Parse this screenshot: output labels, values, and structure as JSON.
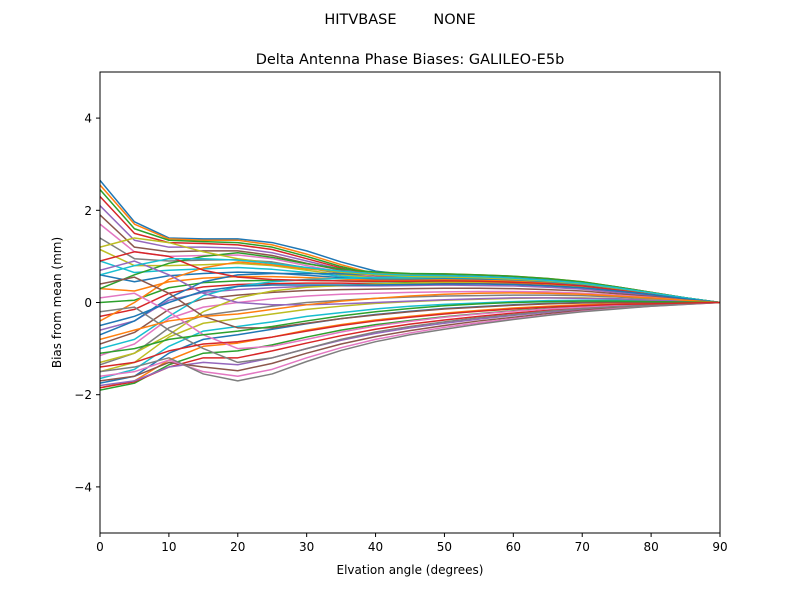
{
  "figure": {
    "suptitle": "HITVBASE        NONE"
  },
  "chart_data": {
    "type": "line",
    "title": "Delta Antenna Phase Biases: GALILEO-E5b",
    "xlabel": "Elvation angle (degrees)",
    "ylabel": "Bias from mean (mm)",
    "xlim": [
      0,
      90
    ],
    "ylim": [
      -5,
      5
    ],
    "xticks": [
      0,
      10,
      20,
      30,
      40,
      50,
      60,
      70,
      80,
      90
    ],
    "yticks": [
      -4,
      -2,
      0,
      2,
      4
    ],
    "ytick_labels": [
      "−4",
      "−2",
      "0",
      "2",
      "4"
    ],
    "grid": false,
    "legend": "none",
    "x": [
      0,
      5,
      10,
      15,
      20,
      25,
      30,
      35,
      40,
      45,
      50,
      55,
      60,
      65,
      70,
      75,
      80,
      85,
      90
    ],
    "colors": [
      "#1f77b4",
      "#ff7f0e",
      "#2ca02c",
      "#d62728",
      "#9467bd",
      "#8c564b",
      "#e377c2",
      "#7f7f7f",
      "#bcbd22",
      "#17becf"
    ],
    "series": [
      {
        "values": [
          2.65,
          1.75,
          1.4,
          1.38,
          1.38,
          1.3,
          1.12,
          0.88,
          0.68,
          0.6,
          0.58,
          0.55,
          0.52,
          0.48,
          0.42,
          0.32,
          0.22,
          0.1,
          0.0
        ]
      },
      {
        "values": [
          2.55,
          1.7,
          1.38,
          1.35,
          1.35,
          1.25,
          1.05,
          0.82,
          0.62,
          0.58,
          0.57,
          0.55,
          0.52,
          0.48,
          0.42,
          0.32,
          0.22,
          0.1,
          0.0
        ]
      },
      {
        "values": [
          2.45,
          1.6,
          1.35,
          1.32,
          1.3,
          1.2,
          1.0,
          0.78,
          0.6,
          0.56,
          0.56,
          0.54,
          0.51,
          0.47,
          0.41,
          0.31,
          0.21,
          0.1,
          0.0
        ]
      },
      {
        "values": [
          2.3,
          1.5,
          1.3,
          1.28,
          1.25,
          1.15,
          0.95,
          0.75,
          0.58,
          0.55,
          0.55,
          0.53,
          0.5,
          0.46,
          0.4,
          0.3,
          0.2,
          0.09,
          0.0
        ]
      },
      {
        "values": [
          2.1,
          1.35,
          1.2,
          1.2,
          1.18,
          1.08,
          0.9,
          0.72,
          0.57,
          0.54,
          0.54,
          0.52,
          0.49,
          0.45,
          0.39,
          0.3,
          0.2,
          0.09,
          0.0
        ]
      },
      {
        "values": [
          1.9,
          1.2,
          1.1,
          1.12,
          1.12,
          1.02,
          0.85,
          0.7,
          0.56,
          0.54,
          0.55,
          0.53,
          0.5,
          0.46,
          0.4,
          0.3,
          0.2,
          0.09,
          0.0
        ]
      },
      {
        "values": [
          1.7,
          1.1,
          1.0,
          1.02,
          1.03,
          0.95,
          0.8,
          0.66,
          0.55,
          0.53,
          0.54,
          0.52,
          0.49,
          0.45,
          0.39,
          0.3,
          0.2,
          0.09,
          0.0
        ]
      },
      {
        "values": [
          1.4,
          0.95,
          0.9,
          0.92,
          0.93,
          0.88,
          0.75,
          0.63,
          0.54,
          0.53,
          0.54,
          0.52,
          0.49,
          0.45,
          0.39,
          0.3,
          0.2,
          0.09,
          0.0
        ]
      },
      {
        "values": [
          1.15,
          0.8,
          0.8,
          0.82,
          0.85,
          0.8,
          0.7,
          0.6,
          0.53,
          0.52,
          0.53,
          0.52,
          0.49,
          0.45,
          0.39,
          0.3,
          0.2,
          0.09,
          0.0
        ]
      },
      {
        "values": [
          0.9,
          0.65,
          0.7,
          0.73,
          0.76,
          0.72,
          0.65,
          0.57,
          0.51,
          0.51,
          0.52,
          0.51,
          0.48,
          0.44,
          0.38,
          0.29,
          0.19,
          0.09,
          0.0
        ]
      },
      {
        "values": [
          0.6,
          0.45,
          0.58,
          0.63,
          0.66,
          0.64,
          0.59,
          0.54,
          0.5,
          0.5,
          0.51,
          0.5,
          0.47,
          0.43,
          0.37,
          0.28,
          0.19,
          0.09,
          0.0
        ]
      },
      {
        "values": [
          0.3,
          0.25,
          0.45,
          0.53,
          0.56,
          0.56,
          0.54,
          0.51,
          0.48,
          0.48,
          0.49,
          0.48,
          0.46,
          0.42,
          0.36,
          0.27,
          0.18,
          0.08,
          0.0
        ]
      },
      {
        "values": [
          0.0,
          0.05,
          0.32,
          0.43,
          0.47,
          0.48,
          0.48,
          0.47,
          0.45,
          0.45,
          0.46,
          0.45,
          0.43,
          0.4,
          0.34,
          0.26,
          0.17,
          0.08,
          0.0
        ]
      },
      {
        "values": [
          -0.3,
          -0.15,
          0.2,
          0.34,
          0.39,
          0.41,
          0.42,
          0.42,
          0.41,
          0.41,
          0.42,
          0.41,
          0.4,
          0.37,
          0.32,
          0.24,
          0.16,
          0.07,
          0.0
        ]
      },
      {
        "values": [
          -0.6,
          -0.4,
          0.05,
          0.22,
          0.28,
          0.32,
          0.35,
          0.36,
          0.36,
          0.37,
          0.38,
          0.37,
          0.36,
          0.33,
          0.29,
          0.22,
          0.15,
          0.07,
          0.0
        ]
      },
      {
        "values": [
          -0.9,
          -0.65,
          -0.15,
          0.08,
          0.16,
          0.22,
          0.26,
          0.28,
          0.29,
          0.3,
          0.31,
          0.31,
          0.3,
          0.28,
          0.25,
          0.19,
          0.13,
          0.06,
          0.0
        ]
      },
      {
        "values": [
          -1.15,
          -0.9,
          -0.35,
          -0.1,
          0.0,
          0.08,
          0.14,
          0.18,
          0.2,
          0.22,
          0.23,
          0.24,
          0.24,
          0.23,
          0.2,
          0.16,
          0.11,
          0.05,
          0.0
        ]
      },
      {
        "values": [
          -1.35,
          -1.1,
          -0.55,
          -0.28,
          -0.18,
          -0.08,
          0.0,
          0.05,
          0.09,
          0.12,
          0.14,
          0.15,
          0.16,
          0.16,
          0.15,
          0.12,
          0.08,
          0.04,
          0.0
        ]
      },
      {
        "values": [
          -1.5,
          -1.3,
          -0.75,
          -0.45,
          -0.35,
          -0.25,
          -0.15,
          -0.08,
          -0.02,
          0.02,
          0.05,
          0.07,
          0.09,
          0.1,
          0.1,
          0.08,
          0.06,
          0.03,
          0.0
        ]
      },
      {
        "values": [
          -1.65,
          -1.45,
          -0.95,
          -0.62,
          -0.52,
          -0.42,
          -0.3,
          -0.22,
          -0.14,
          -0.08,
          -0.04,
          -0.01,
          0.02,
          0.04,
          0.05,
          0.05,
          0.04,
          0.02,
          0.0
        ]
      },
      {
        "values": [
          -1.75,
          -1.6,
          -1.1,
          -0.8,
          -0.7,
          -0.58,
          -0.46,
          -0.35,
          -0.26,
          -0.19,
          -0.13,
          -0.09,
          -0.05,
          -0.02,
          0.0,
          0.01,
          0.01,
          0.01,
          0.0
        ]
      },
      {
        "values": [
          -1.85,
          -1.7,
          -1.25,
          -0.95,
          -0.88,
          -0.75,
          -0.6,
          -0.48,
          -0.38,
          -0.3,
          -0.23,
          -0.17,
          -0.12,
          -0.08,
          -0.05,
          -0.03,
          -0.02,
          -0.01,
          0.0
        ]
      },
      {
        "values": [
          -1.9,
          -1.75,
          -1.35,
          -1.1,
          -1.05,
          -0.92,
          -0.75,
          -0.6,
          -0.48,
          -0.39,
          -0.31,
          -0.24,
          -0.18,
          -0.13,
          -0.09,
          -0.06,
          -0.04,
          -0.02,
          0.0
        ]
      },
      {
        "values": [
          -1.85,
          -1.72,
          -1.4,
          -1.2,
          -1.2,
          -1.05,
          -0.88,
          -0.72,
          -0.58,
          -0.47,
          -0.38,
          -0.3,
          -0.23,
          -0.17,
          -0.12,
          -0.08,
          -0.05,
          -0.02,
          0.0
        ]
      },
      {
        "values": [
          -1.8,
          -1.7,
          -1.4,
          -1.3,
          -1.35,
          -1.2,
          -1.0,
          -0.82,
          -0.67,
          -0.55,
          -0.45,
          -0.36,
          -0.28,
          -0.21,
          -0.15,
          -0.1,
          -0.06,
          -0.03,
          0.0
        ]
      },
      {
        "values": [
          -1.7,
          -1.6,
          -1.3,
          -1.4,
          -1.48,
          -1.32,
          -1.1,
          -0.9,
          -0.74,
          -0.61,
          -0.5,
          -0.4,
          -0.32,
          -0.24,
          -0.17,
          -0.11,
          -0.07,
          -0.03,
          0.0
        ]
      },
      {
        "values": [
          -1.6,
          -1.5,
          -1.25,
          -1.5,
          -1.6,
          -1.45,
          -1.2,
          -0.98,
          -0.8,
          -0.66,
          -0.54,
          -0.44,
          -0.35,
          -0.27,
          -0.19,
          -0.13,
          -0.08,
          -0.04,
          0.0
        ]
      },
      {
        "values": [
          -1.5,
          -1.4,
          -1.2,
          -1.55,
          -1.7,
          -1.55,
          -1.28,
          -1.04,
          -0.85,
          -0.7,
          -0.58,
          -0.47,
          -0.37,
          -0.28,
          -0.2,
          -0.14,
          -0.08,
          -0.04,
          0.0
        ]
      },
      {
        "values": [
          -1.3,
          -1.1,
          -0.7,
          -0.2,
          0.1,
          0.25,
          0.33,
          0.37,
          0.4,
          0.42,
          0.44,
          0.44,
          0.43,
          0.4,
          0.35,
          0.27,
          0.18,
          0.08,
          0.0
        ]
      },
      {
        "values": [
          -1.0,
          -0.8,
          -0.3,
          0.15,
          0.35,
          0.45,
          0.5,
          0.52,
          0.54,
          0.55,
          0.56,
          0.55,
          0.53,
          0.49,
          0.42,
          0.32,
          0.21,
          0.1,
          0.0
        ]
      },
      {
        "values": [
          -0.7,
          -0.4,
          0.1,
          0.45,
          0.6,
          0.63,
          0.63,
          0.62,
          0.61,
          0.61,
          0.61,
          0.59,
          0.56,
          0.51,
          0.44,
          0.34,
          0.22,
          0.1,
          0.0
        ]
      },
      {
        "values": [
          -0.4,
          0.0,
          0.5,
          0.75,
          0.88,
          0.82,
          0.73,
          0.67,
          0.63,
          0.62,
          0.62,
          0.6,
          0.57,
          0.52,
          0.45,
          0.34,
          0.22,
          0.1,
          0.0
        ]
      },
      {
        "values": [
          0.3,
          0.6,
          0.85,
          1.0,
          1.08,
          0.98,
          0.84,
          0.73,
          0.66,
          0.63,
          0.62,
          0.6,
          0.57,
          0.52,
          0.45,
          0.34,
          0.22,
          0.1,
          0.0
        ]
      },
      {
        "values": [
          0.9,
          1.1,
          1.0,
          0.7,
          0.55,
          0.5,
          0.48,
          0.47,
          0.46,
          0.46,
          0.47,
          0.46,
          0.44,
          0.41,
          0.36,
          0.27,
          0.18,
          0.08,
          0.0
        ]
      },
      {
        "values": [
          0.7,
          0.9,
          0.6,
          0.2,
          0.0,
          -0.05,
          -0.05,
          -0.03,
          0.0,
          0.03,
          0.06,
          0.08,
          0.1,
          0.1,
          0.09,
          0.08,
          0.05,
          0.03,
          0.0
        ]
      },
      {
        "values": [
          0.4,
          0.55,
          0.2,
          -0.3,
          -0.55,
          -0.55,
          -0.45,
          -0.35,
          -0.27,
          -0.2,
          -0.14,
          -0.1,
          -0.06,
          -0.03,
          -0.01,
          0.0,
          0.0,
          0.0,
          0.0
        ]
      },
      {
        "values": [
          0.1,
          0.2,
          -0.2,
          -0.7,
          -1.0,
          -0.95,
          -0.8,
          -0.64,
          -0.51,
          -0.41,
          -0.32,
          -0.25,
          -0.19,
          -0.14,
          -0.1,
          -0.06,
          -0.04,
          -0.02,
          0.0
        ]
      },
      {
        "values": [
          -0.2,
          -0.1,
          -0.6,
          -1.0,
          -1.3,
          -1.2,
          -1.0,
          -0.8,
          -0.64,
          -0.52,
          -0.42,
          -0.33,
          -0.26,
          -0.19,
          -0.13,
          -0.09,
          -0.05,
          -0.02,
          0.0
        ]
      },
      {
        "values": [
          1.2,
          1.4,
          1.3,
          1.1,
          0.95,
          0.85,
          0.75,
          0.66,
          0.6,
          0.57,
          0.56,
          0.54,
          0.51,
          0.47,
          0.41,
          0.31,
          0.21,
          0.09,
          0.0
        ]
      },
      {
        "values": [
          0.6,
          0.8,
          0.95,
          0.95,
          0.92,
          0.85,
          0.76,
          0.68,
          0.62,
          0.59,
          0.58,
          0.56,
          0.53,
          0.48,
          0.42,
          0.32,
          0.21,
          0.1,
          0.0
        ]
      },
      {
        "values": [
          -0.5,
          -0.3,
          0.0,
          0.25,
          0.35,
          0.38,
          0.38,
          0.38,
          0.38,
          0.39,
          0.4,
          0.4,
          0.39,
          0.36,
          0.32,
          0.25,
          0.17,
          0.08,
          0.0
        ]
      },
      {
        "values": [
          -0.8,
          -0.6,
          -0.4,
          -0.3,
          -0.25,
          -0.15,
          -0.05,
          0.03,
          0.09,
          0.14,
          0.18,
          0.2,
          0.21,
          0.2,
          0.18,
          0.14,
          0.1,
          0.05,
          0.0
        ]
      },
      {
        "values": [
          -1.1,
          -1.0,
          -0.8,
          -0.7,
          -0.62,
          -0.52,
          -0.4,
          -0.29,
          -0.2,
          -0.13,
          -0.07,
          -0.03,
          0.0,
          0.02,
          0.03,
          0.03,
          0.02,
          0.01,
          0.0
        ]
      },
      {
        "values": [
          -1.4,
          -1.3,
          -1.05,
          -0.9,
          -0.85,
          -0.75,
          -0.62,
          -0.5,
          -0.4,
          -0.32,
          -0.25,
          -0.19,
          -0.14,
          -0.1,
          -0.07,
          -0.04,
          -0.03,
          -0.01,
          0.0
        ]
      }
    ]
  }
}
